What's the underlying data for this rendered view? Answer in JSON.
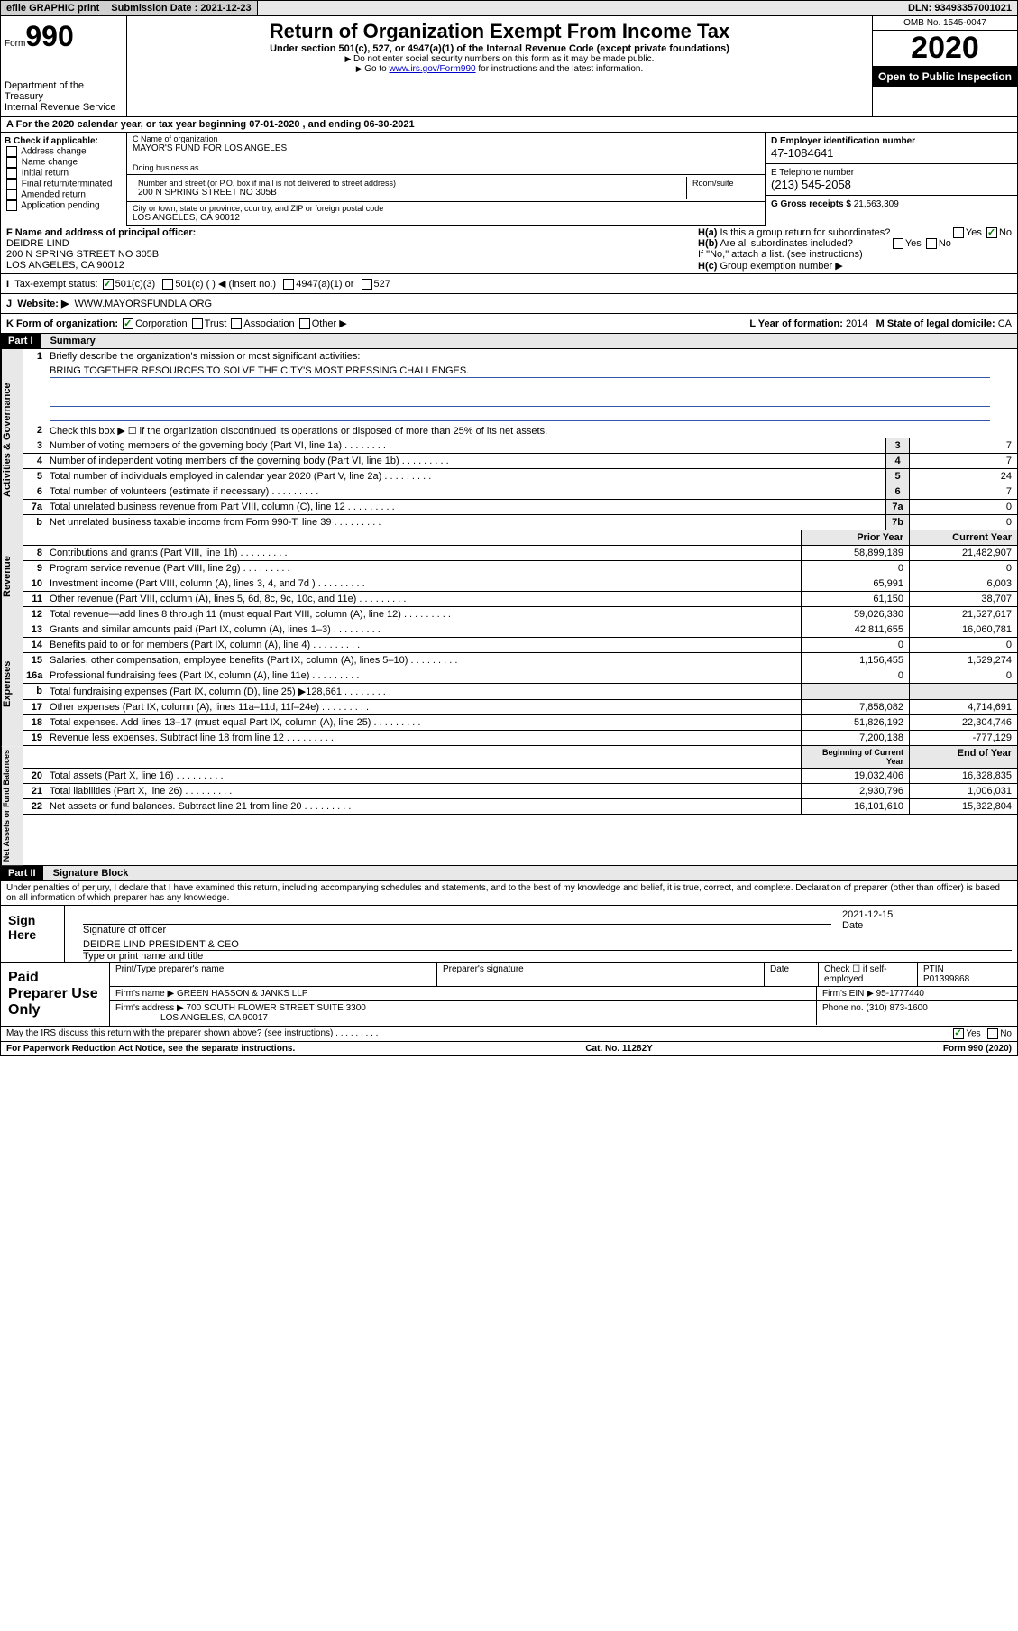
{
  "topbar": {
    "efile": "efile GRAPHIC print",
    "sub_label": "Submission Date : 2021-12-23",
    "dln": "DLN: 93493357001021"
  },
  "header": {
    "form": "Form",
    "form_num": "990",
    "dept": "Department of the Treasury",
    "irs": "Internal Revenue Service",
    "title": "Return of Organization Exempt From Income Tax",
    "subtitle": "Under section 501(c), 527, or 4947(a)(1) of the Internal Revenue Code (except private foundations)",
    "inst1": "Do not enter social security numbers on this form as it may be made public.",
    "inst2_pre": "Go to ",
    "inst2_link": "www.irs.gov/Form990",
    "inst2_post": " for instructions and the latest information.",
    "omb": "OMB No. 1545-0047",
    "year": "2020",
    "inspection": "Open to Public Inspection"
  },
  "rowA": "For the 2020 calendar year, or tax year beginning 07-01-2020    , and ending 06-30-2021",
  "boxB": {
    "label": "B Check if applicable:",
    "items": [
      "Address change",
      "Name change",
      "Initial return",
      "Final return/terminated",
      "Amended return",
      "Application pending"
    ]
  },
  "boxC": {
    "name_lbl": "C Name of organization",
    "name": "MAYOR'S FUND FOR LOS ANGELES",
    "dba_lbl": "Doing business as",
    "addr_lbl": "Number and street (or P.O. box if mail is not delivered to street address)",
    "room_lbl": "Room/suite",
    "addr": "200 N SPRING STREET NO 305B",
    "city_lbl": "City or town, state or province, country, and ZIP or foreign postal code",
    "city": "LOS ANGELES, CA  90012"
  },
  "boxD": {
    "lbl": "D Employer identification number",
    "val": "47-1084641"
  },
  "boxE": {
    "lbl": "E Telephone number",
    "val": "(213) 545-2058"
  },
  "boxG": {
    "lbl": "G Gross receipts $",
    "val": "21,563,309"
  },
  "boxF": {
    "lbl": "F Name and address of principal officer:",
    "name": "DEIDRE LIND",
    "addr1": "200 N SPRING STREET NO 305B",
    "addr2": "LOS ANGELES, CA  90012"
  },
  "boxH": {
    "ha": "Is this a group return for subordinates?",
    "hb": "Are all subordinates included?",
    "hnote": "If \"No,\" attach a list. (see instructions)",
    "hc": "Group exemption number ▶"
  },
  "taxI": {
    "lbl": "Tax-exempt status:",
    "opts": [
      "501(c)(3)",
      "501(c) (  ) ◀ (insert no.)",
      "4947(a)(1) or",
      "527"
    ]
  },
  "taxJ": {
    "lbl": "Website: ▶",
    "val": "WWW.MAYORSFUNDLA.ORG"
  },
  "rowK": {
    "k": "K Form of organization:",
    "opts": [
      "Corporation",
      "Trust",
      "Association",
      "Other ▶"
    ],
    "l": "L Year of formation:",
    "lval": "2014",
    "m": "M State of legal domicile:",
    "mval": "CA"
  },
  "partI": {
    "hdr": "Part I",
    "title": "Summary"
  },
  "gov": {
    "label": "Activities & Governance",
    "l1": "Briefly describe the organization's mission or most significant activities:",
    "mission": "BRING TOGETHER RESOURCES TO SOLVE THE CITY'S MOST PRESSING CHALLENGES.",
    "l2": "Check this box ▶ ☐ if the organization discontinued its operations or disposed of more than 25% of its net assets.",
    "rows": [
      {
        "n": "3",
        "t": "Number of voting members of the governing body (Part VI, line 1a)",
        "b": "3",
        "v": "7"
      },
      {
        "n": "4",
        "t": "Number of independent voting members of the governing body (Part VI, line 1b)",
        "b": "4",
        "v": "7"
      },
      {
        "n": "5",
        "t": "Total number of individuals employed in calendar year 2020 (Part V, line 2a)",
        "b": "5",
        "v": "24"
      },
      {
        "n": "6",
        "t": "Total number of volunteers (estimate if necessary)",
        "b": "6",
        "v": "7"
      },
      {
        "n": "7a",
        "t": "Total unrelated business revenue from Part VIII, column (C), line 12",
        "b": "7a",
        "v": "0"
      },
      {
        "n": "b",
        "t": "Net unrelated business taxable income from Form 990-T, line 39",
        "b": "7b",
        "v": "0"
      }
    ]
  },
  "rev": {
    "label": "Revenue",
    "hdr_prior": "Prior Year",
    "hdr_curr": "Current Year",
    "rows": [
      {
        "n": "8",
        "t": "Contributions and grants (Part VIII, line 1h)",
        "p": "58,899,189",
        "c": "21,482,907"
      },
      {
        "n": "9",
        "t": "Program service revenue (Part VIII, line 2g)",
        "p": "0",
        "c": "0"
      },
      {
        "n": "10",
        "t": "Investment income (Part VIII, column (A), lines 3, 4, and 7d )",
        "p": "65,991",
        "c": "6,003"
      },
      {
        "n": "11",
        "t": "Other revenue (Part VIII, column (A), lines 5, 6d, 8c, 9c, 10c, and 11e)",
        "p": "61,150",
        "c": "38,707"
      },
      {
        "n": "12",
        "t": "Total revenue—add lines 8 through 11 (must equal Part VIII, column (A), line 12)",
        "p": "59,026,330",
        "c": "21,527,617"
      }
    ]
  },
  "exp": {
    "label": "Expenses",
    "rows": [
      {
        "n": "13",
        "t": "Grants and similar amounts paid (Part IX, column (A), lines 1–3)",
        "p": "42,811,655",
        "c": "16,060,781"
      },
      {
        "n": "14",
        "t": "Benefits paid to or for members (Part IX, column (A), line 4)",
        "p": "0",
        "c": "0"
      },
      {
        "n": "15",
        "t": "Salaries, other compensation, employee benefits (Part IX, column (A), lines 5–10)",
        "p": "1,156,455",
        "c": "1,529,274"
      },
      {
        "n": "16a",
        "t": "Professional fundraising fees (Part IX, column (A), line 11e)",
        "p": "0",
        "c": "0"
      },
      {
        "n": "b",
        "t": "Total fundraising expenses (Part IX, column (D), line 25) ▶128,661",
        "p": "",
        "c": ""
      },
      {
        "n": "17",
        "t": "Other expenses (Part IX, column (A), lines 11a–11d, 11f–24e)",
        "p": "7,858,082",
        "c": "4,714,691"
      },
      {
        "n": "18",
        "t": "Total expenses. Add lines 13–17 (must equal Part IX, column (A), line 25)",
        "p": "51,826,192",
        "c": "22,304,746"
      },
      {
        "n": "19",
        "t": "Revenue less expenses. Subtract line 18 from line 12",
        "p": "7,200,138",
        "c": "-777,129"
      }
    ]
  },
  "net": {
    "label": "Net Assets or Fund Balances",
    "hdr_beg": "Beginning of Current Year",
    "hdr_end": "End of Year",
    "rows": [
      {
        "n": "20",
        "t": "Total assets (Part X, line 16)",
        "p": "19,032,406",
        "c": "16,328,835"
      },
      {
        "n": "21",
        "t": "Total liabilities (Part X, line 26)",
        "p": "2,930,796",
        "c": "1,006,031"
      },
      {
        "n": "22",
        "t": "Net assets or fund balances. Subtract line 21 from line 20",
        "p": "16,101,610",
        "c": "15,322,804"
      }
    ]
  },
  "partII": {
    "hdr": "Part II",
    "title": "Signature Block"
  },
  "perjury": "Under penalties of perjury, I declare that I have examined this return, including accompanying schedules and statements, and to the best of my knowledge and belief, it is true, correct, and complete. Declaration of preparer (other than officer) is based on all information of which preparer has any knowledge.",
  "sign": {
    "left": "Sign Here",
    "sig_lbl": "Signature of officer",
    "date_lbl": "Date",
    "date": "2021-12-15",
    "name": "DEIDRE LIND  PRESIDENT & CEO",
    "name_lbl": "Type or print name and title"
  },
  "prep": {
    "left": "Paid Preparer Use Only",
    "h1": "Print/Type preparer's name",
    "h2": "Preparer's signature",
    "h3": "Date",
    "h4": "Check ☐ if self-employed",
    "h5_lbl": "PTIN",
    "h5": "P01399868",
    "firm_lbl": "Firm's name   ▶",
    "firm": "GREEN HASSON & JANKS LLP",
    "ein_lbl": "Firm's EIN ▶",
    "ein": "95-1777440",
    "addr_lbl": "Firm's address ▶",
    "addr": "700 SOUTH FLOWER STREET SUITE 3300",
    "addr2": "LOS ANGELES, CA  90017",
    "phone_lbl": "Phone no.",
    "phone": "(310) 873-1600"
  },
  "discuss": "May the IRS discuss this return with the preparer shown above? (see instructions)",
  "footer": {
    "l": "For Paperwork Reduction Act Notice, see the separate instructions.",
    "m": "Cat. No. 11282Y",
    "r": "Form 990 (2020)"
  },
  "colors": {
    "link": "#0000cc",
    "hdr_bg": "#000000",
    "gray": "#e8e8e8",
    "check": "#008000"
  }
}
